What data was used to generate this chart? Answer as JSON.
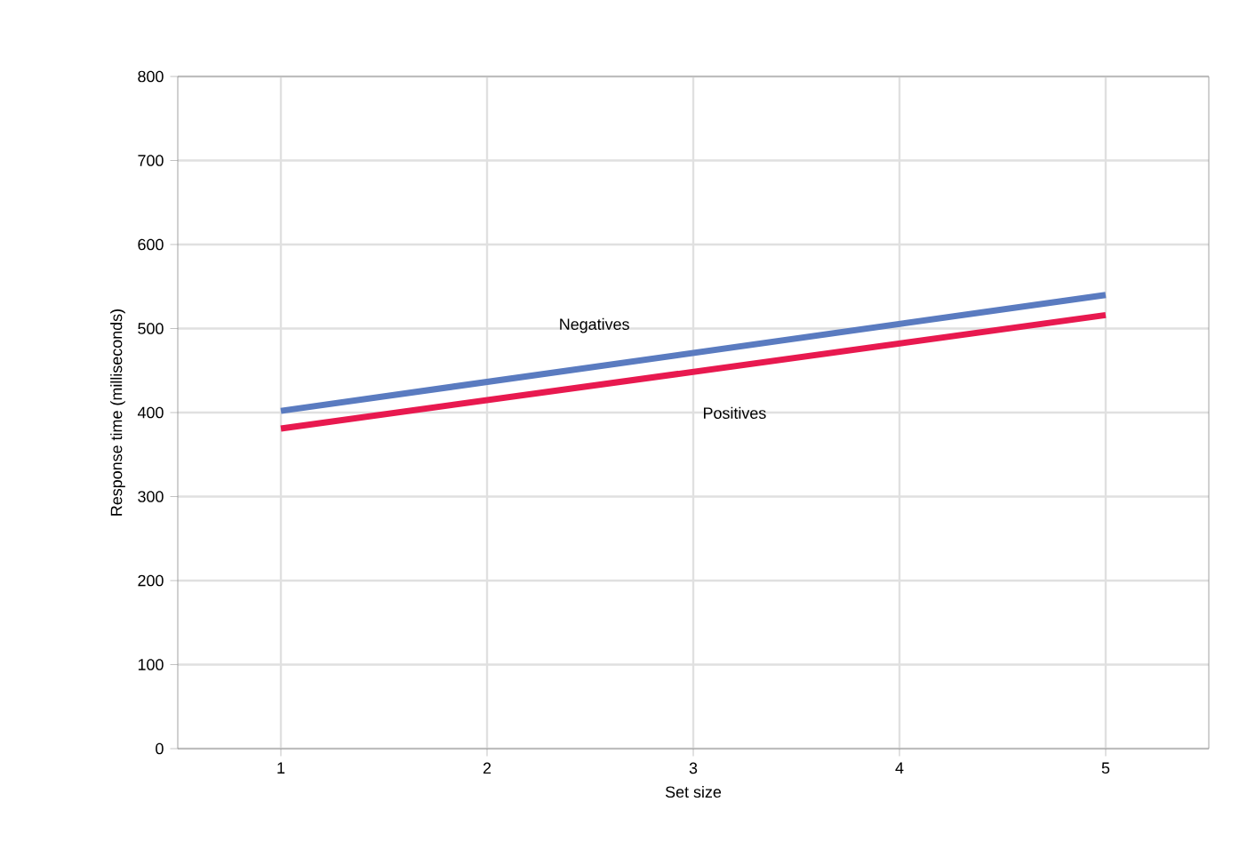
{
  "chart_data": {
    "type": "line",
    "xlabel": "Set size",
    "ylabel": "Response time (milliseconds)",
    "x": [
      1,
      5
    ],
    "series": [
      {
        "name": "Negatives",
        "color": "#5a7bc0",
        "values": [
          402,
          540
        ]
      },
      {
        "name": "Positives",
        "color": "#e8194f",
        "values": [
          381,
          516
        ]
      }
    ],
    "xlim": [
      0.5,
      5.5
    ],
    "ylim": [
      0,
      800
    ],
    "xticks": [
      1,
      2,
      3,
      4,
      5
    ],
    "yticks": [
      0,
      100,
      200,
      300,
      400,
      500,
      600,
      700,
      800
    ],
    "grid": true,
    "marker": "none",
    "line_style": "solid"
  }
}
